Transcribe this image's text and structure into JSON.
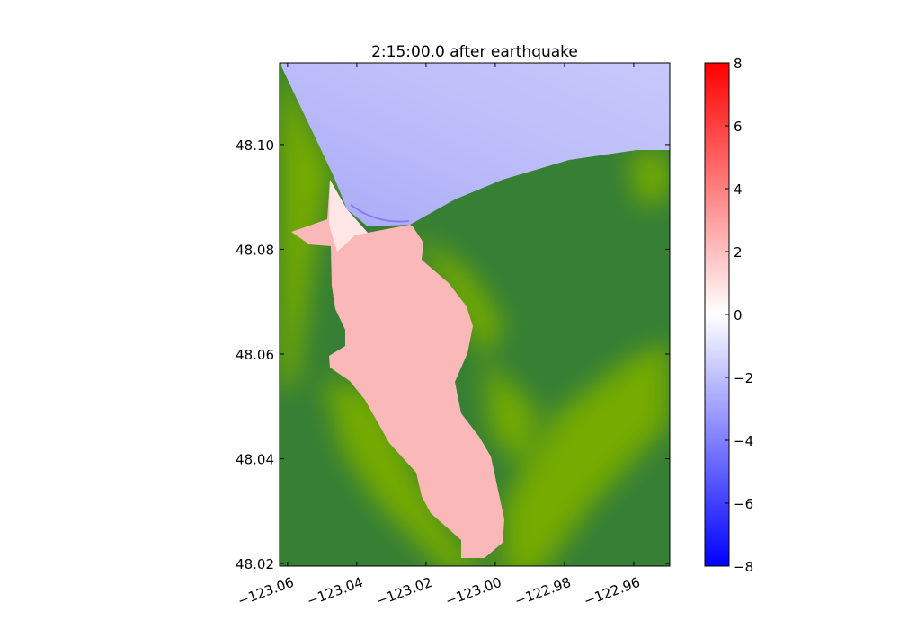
{
  "chart_data": {
    "type": "heatmap",
    "title": "2:15:00.0 after earthquake",
    "xlabel": "",
    "ylabel": "",
    "xlim": [
      -123.0623,
      -122.9496
    ],
    "ylim": [
      48.0195,
      48.1156
    ],
    "xticks": [
      -123.06,
      -123.04,
      -123.02,
      -123.0,
      -122.98,
      -122.96
    ],
    "xtick_labels": [
      "−123.06",
      "−123.04",
      "−123.02",
      "−123.00",
      "−122.98",
      "−122.96"
    ],
    "yticks": [
      48.02,
      48.04,
      48.06,
      48.08,
      48.1
    ],
    "ytick_labels": [
      "48.02",
      "48.04",
      "48.06",
      "48.08",
      "48.10"
    ],
    "colorbar": {
      "range": [
        -8,
        8
      ],
      "ticks": [
        -8,
        -6,
        -4,
        -2,
        0,
        2,
        4,
        6,
        8
      ],
      "tick_labels": [
        "−8",
        "−6",
        "−4",
        "−2",
        "0",
        "2",
        "4",
        "6",
        "8"
      ],
      "colormap": [
        "#0000ff",
        "#ffffff",
        "#ff0000"
      ]
    },
    "colors": {
      "land_dark": "#367f34",
      "land_light": "#74aa06",
      "water_negative": "#c2c2fb",
      "water_positive": "#fbb8b8"
    },
    "grid": false
  }
}
